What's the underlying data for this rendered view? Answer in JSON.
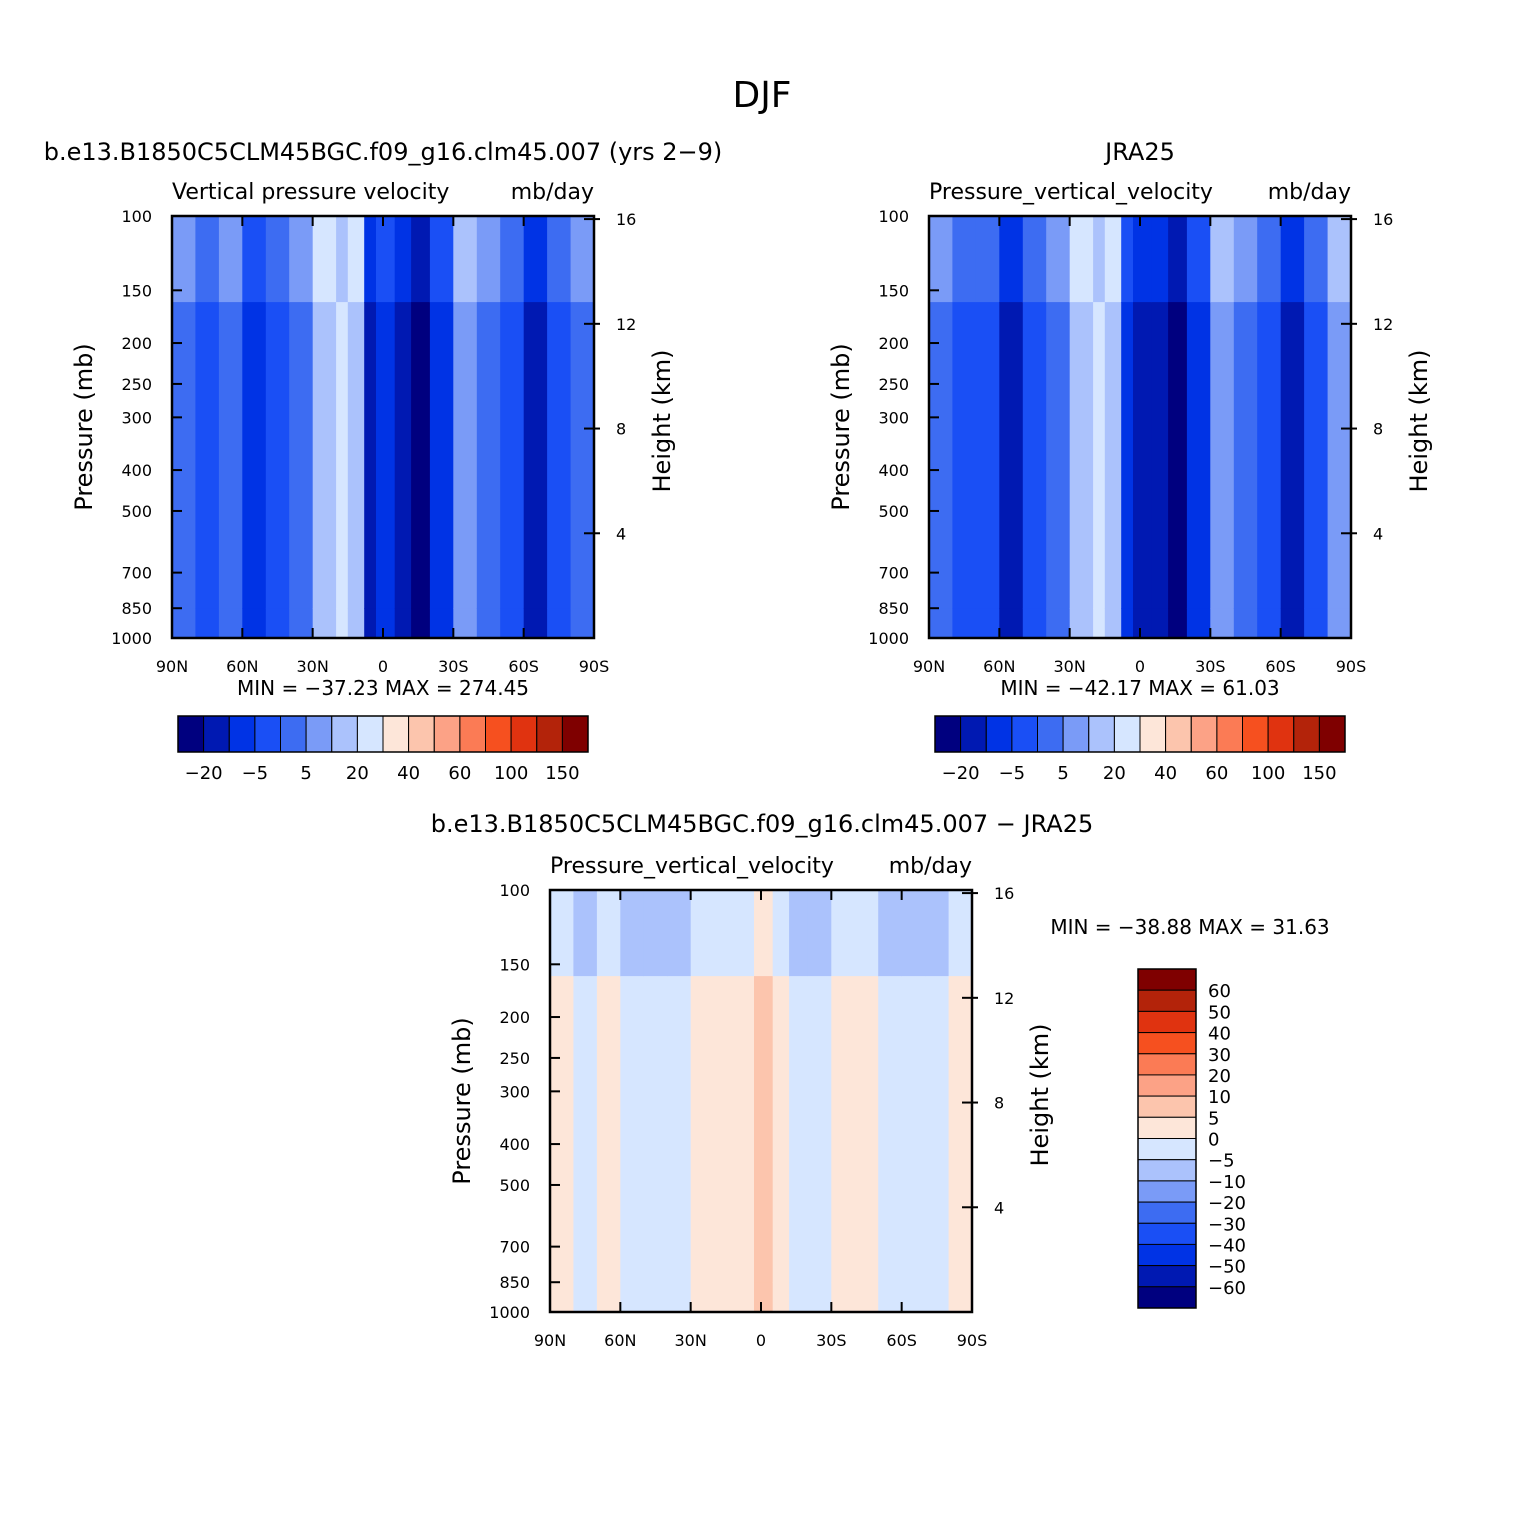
{
  "figure": {
    "main_title": "DJF"
  },
  "scales": {
    "abs_colors": [
      "#00007f",
      "#0019b2",
      "#0033e5",
      "#1a4ff5",
      "#3d6cf2",
      "#7a9bf7",
      "#abc2fc",
      "#d6e6ff",
      "#fde6d9",
      "#fcc5ad",
      "#fca286",
      "#fb7b55",
      "#f6501f",
      "#e03310",
      "#b3230a",
      "#7f0000"
    ],
    "abs_labels": [
      "−20",
      "−5",
      "5",
      "20",
      "40",
      "60",
      "100",
      "150"
    ],
    "diff_colors": [
      "#00007f",
      "#0019b2",
      "#0033e5",
      "#1a4ff5",
      "#3d6cf2",
      "#7a9bf7",
      "#abc2fc",
      "#d6e6ff",
      "#fde6d9",
      "#fcc5ad",
      "#fca286",
      "#fb7b55",
      "#f6501f",
      "#e03310",
      "#b3230a",
      "#7f0000"
    ],
    "diff_labels": [
      "−60",
      "−50",
      "−40",
      "−30",
      "−20",
      "−10",
      "−5",
      "0",
      "5",
      "10",
      "20",
      "30",
      "40",
      "50",
      "60"
    ]
  },
  "chart_data": [
    {
      "type": "heatmap",
      "title": "b.e13.B1850C5CLM45BGC.f09_g16.clm45.007 (yrs 2−9)",
      "subtitle": "Vertical pressure velocity",
      "units": "mb/day",
      "xlabel": "",
      "ylabel": "Pressure (mb)",
      "ylabel_right": "Height (km)",
      "x_ticks": [
        "90N",
        "60N",
        "30N",
        "0",
        "30S",
        "60S",
        "90S"
      ],
      "x_range": [
        90,
        -90
      ],
      "y_ticks": [
        "100",
        "150",
        "200",
        "250",
        "300",
        "400",
        "500",
        "700",
        "850",
        "1000"
      ],
      "y_range_mb": [
        100,
        1000
      ],
      "y_scale": "log",
      "height_ticks_km": [
        "16",
        "12",
        "8",
        "4"
      ],
      "stats": "MIN = −37.23   MAX = 274.45",
      "min": -37.23,
      "max": 274.45,
      "colorbar": "abs",
      "field": [
        {
          "lat": 90,
          "band": 4
        },
        {
          "lat": 80,
          "band": 3
        },
        {
          "lat": 70,
          "band": 4
        },
        {
          "lat": 60,
          "band": 2
        },
        {
          "lat": 50,
          "band": 3
        },
        {
          "lat": 40,
          "band": 4
        },
        {
          "lat": 30,
          "band": 6
        },
        {
          "lat": 20,
          "band": 7
        },
        {
          "lat": 15,
          "band": 6
        },
        {
          "lat": 8,
          "band": 1
        },
        {
          "lat": 3,
          "band": 2
        },
        {
          "lat": -5,
          "band": 1
        },
        {
          "lat": -12,
          "band": 0
        },
        {
          "lat": -20,
          "band": 2
        },
        {
          "lat": -30,
          "band": 5
        },
        {
          "lat": -40,
          "band": 4
        },
        {
          "lat": -50,
          "band": 3
        },
        {
          "lat": -60,
          "band": 1
        },
        {
          "lat": -70,
          "band": 3
        },
        {
          "lat": -80,
          "band": 4
        },
        {
          "lat": -90,
          "band": 3
        }
      ]
    },
    {
      "type": "heatmap",
      "title": "JRA25",
      "subtitle": "Pressure_vertical_velocity",
      "units": "mb/day",
      "xlabel": "",
      "ylabel": "Pressure (mb)",
      "ylabel_right": "Height (km)",
      "x_ticks": [
        "90N",
        "60N",
        "30N",
        "0",
        "30S",
        "60S",
        "90S"
      ],
      "x_range": [
        90,
        -90
      ],
      "y_ticks": [
        "100",
        "150",
        "200",
        "250",
        "300",
        "400",
        "500",
        "700",
        "850",
        "1000"
      ],
      "y_range_mb": [
        100,
        1000
      ],
      "y_scale": "log",
      "height_ticks_km": [
        "16",
        "12",
        "8",
        "4"
      ],
      "stats": "MIN = −42.17   MAX =  61.03",
      "min": -42.17,
      "max": 61.03,
      "colorbar": "abs",
      "field": [
        {
          "lat": 90,
          "band": 4
        },
        {
          "lat": 80,
          "band": 3
        },
        {
          "lat": 70,
          "band": 3
        },
        {
          "lat": 60,
          "band": 1
        },
        {
          "lat": 50,
          "band": 3
        },
        {
          "lat": 40,
          "band": 4
        },
        {
          "lat": 30,
          "band": 6
        },
        {
          "lat": 20,
          "band": 7
        },
        {
          "lat": 15,
          "band": 6
        },
        {
          "lat": 8,
          "band": 2
        },
        {
          "lat": 3,
          "band": 1
        },
        {
          "lat": -5,
          "band": 1
        },
        {
          "lat": -12,
          "band": 0
        },
        {
          "lat": -20,
          "band": 2
        },
        {
          "lat": -30,
          "band": 5
        },
        {
          "lat": -40,
          "band": 4
        },
        {
          "lat": -50,
          "band": 3
        },
        {
          "lat": -60,
          "band": 1
        },
        {
          "lat": -70,
          "band": 3
        },
        {
          "lat": -80,
          "band": 5
        },
        {
          "lat": -90,
          "band": 3
        }
      ]
    },
    {
      "type": "heatmap",
      "title": "b.e13.B1850C5CLM45BGC.f09_g16.clm45.007 − JRA25",
      "subtitle": "Pressure_vertical_velocity",
      "units": "mb/day",
      "xlabel": "",
      "ylabel": "Pressure (mb)",
      "ylabel_right": "Height (km)",
      "x_ticks": [
        "90N",
        "60N",
        "30N",
        "0",
        "30S",
        "60S",
        "90S"
      ],
      "x_range": [
        90,
        -90
      ],
      "y_ticks": [
        "100",
        "150",
        "200",
        "250",
        "300",
        "400",
        "500",
        "700",
        "850",
        "1000"
      ],
      "y_range_mb": [
        100,
        1000
      ],
      "y_scale": "log",
      "height_ticks_km": [
        "16",
        "12",
        "8",
        "4"
      ],
      "stats": "MIN = −38.88   MAX =  31.63",
      "min": -38.88,
      "max": 31.63,
      "colorbar": "diff",
      "field": [
        {
          "lat": 90,
          "band": 8
        },
        {
          "lat": 80,
          "band": 7
        },
        {
          "lat": 70,
          "band": 8
        },
        {
          "lat": 60,
          "band": 7
        },
        {
          "lat": 50,
          "band": 7
        },
        {
          "lat": 40,
          "band": 7
        },
        {
          "lat": 30,
          "band": 8
        },
        {
          "lat": 20,
          "band": 8
        },
        {
          "lat": 10,
          "band": 8
        },
        {
          "lat": 3,
          "band": 9
        },
        {
          "lat": -5,
          "band": 8
        },
        {
          "lat": -12,
          "band": 7
        },
        {
          "lat": -20,
          "band": 7
        },
        {
          "lat": -30,
          "band": 8
        },
        {
          "lat": -40,
          "band": 8
        },
        {
          "lat": -50,
          "band": 7
        },
        {
          "lat": -60,
          "band": 7
        },
        {
          "lat": -70,
          "band": 7
        },
        {
          "lat": -80,
          "band": 8
        },
        {
          "lat": -90,
          "band": 7
        }
      ]
    }
  ]
}
